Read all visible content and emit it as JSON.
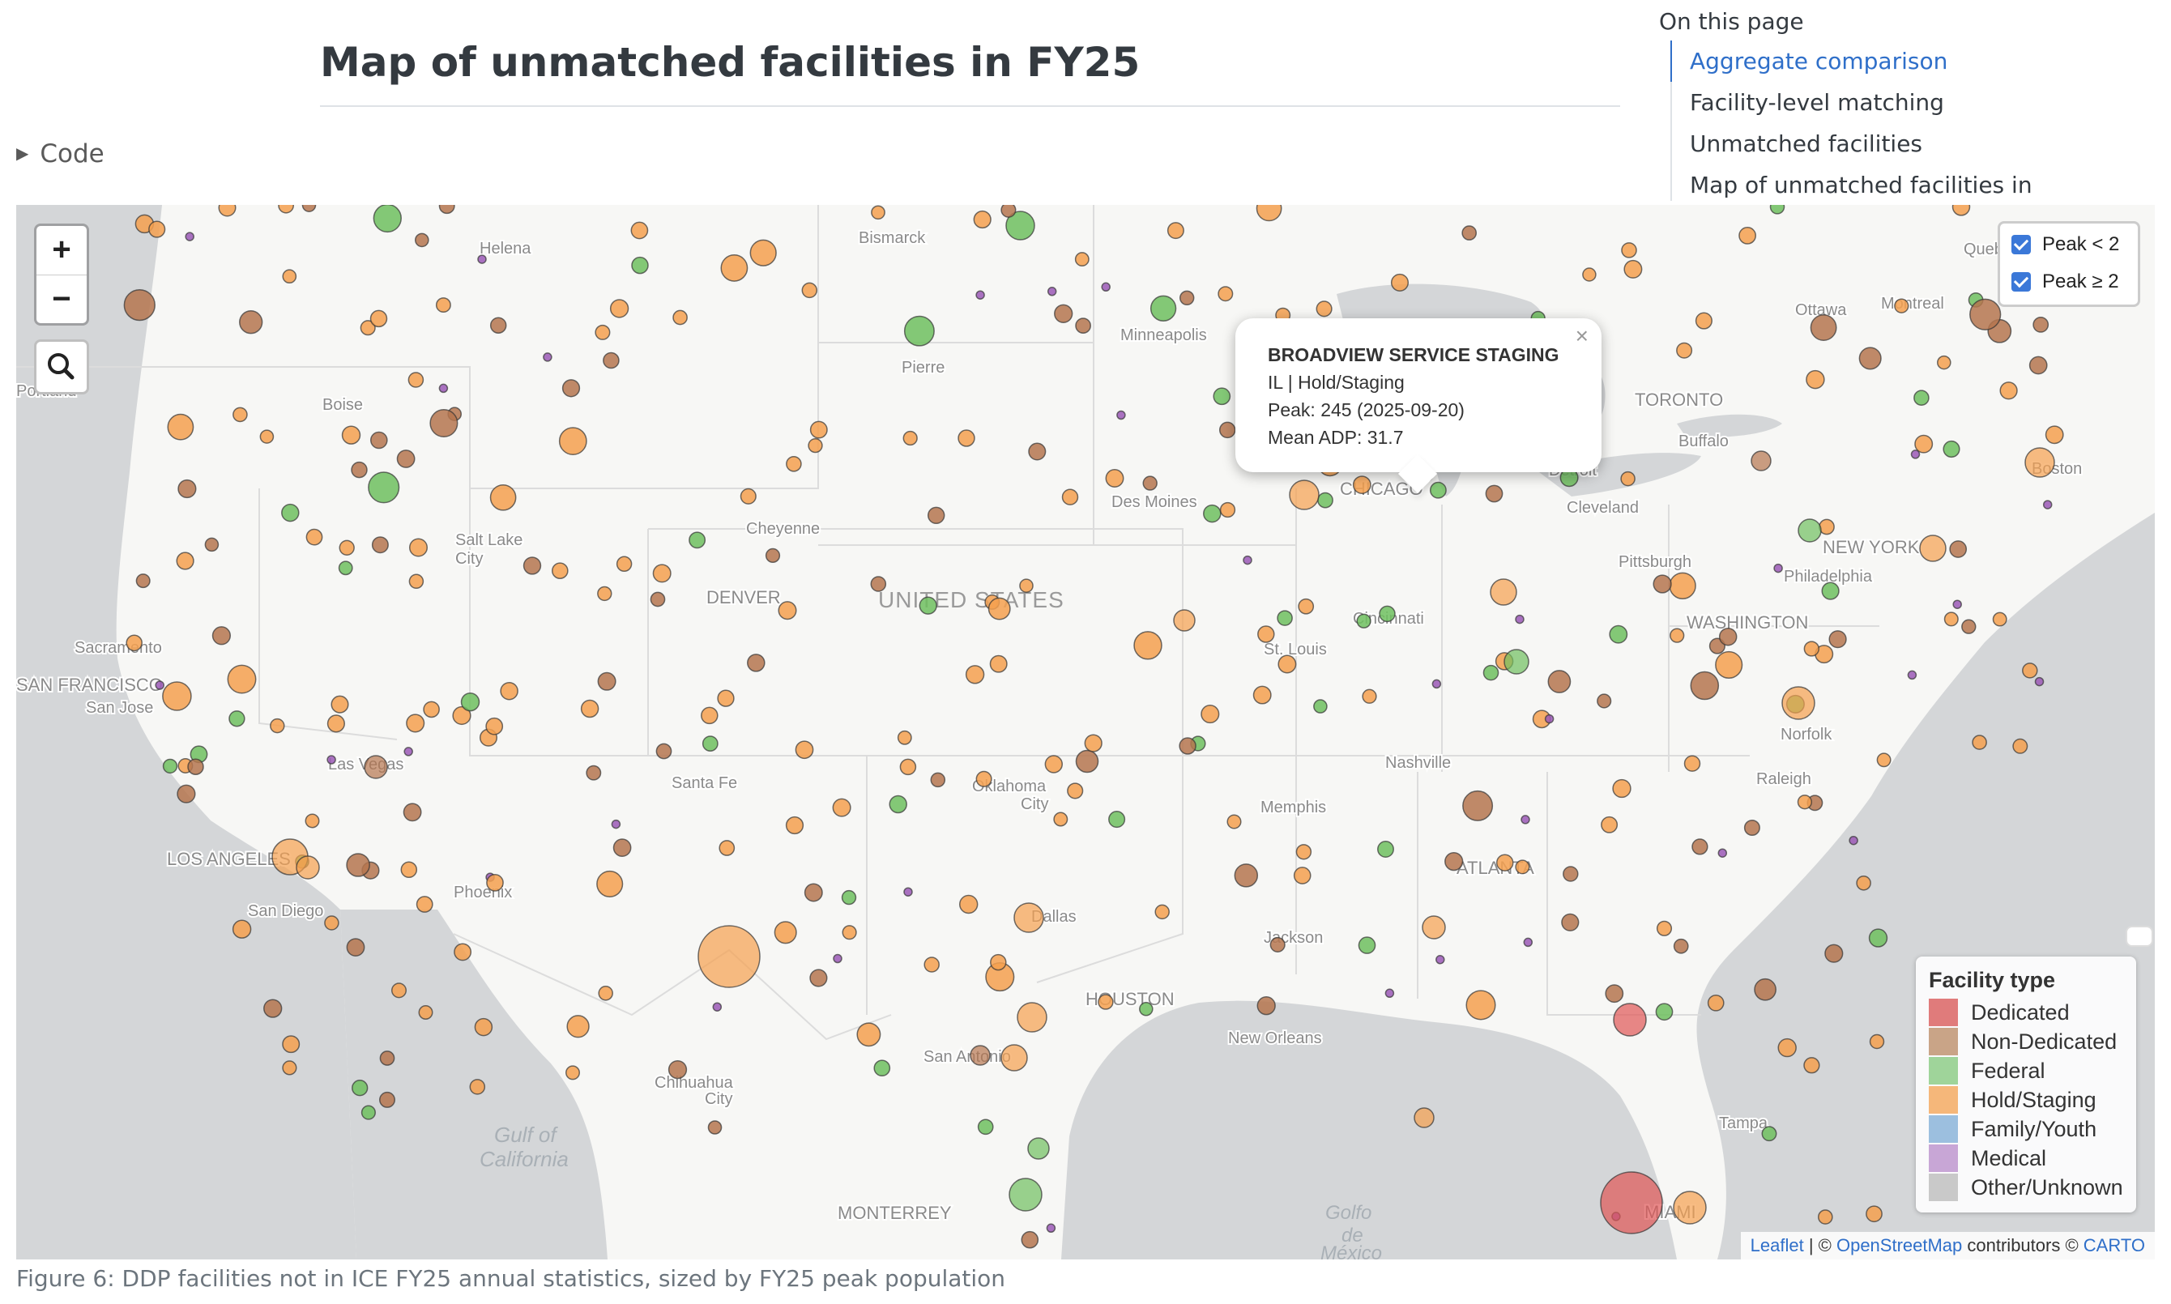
{
  "page": {
    "title": "Map of unmatched facilities in FY25",
    "code_toggle": "Code",
    "caption": "Figure 6: DDP facilities not in ICE FY25 annual statistics, sized by FY25 peak population"
  },
  "toc": {
    "title": "On this page",
    "items": [
      {
        "label": "Aggregate comparison",
        "active": true
      },
      {
        "label": "Facility-level matching",
        "active": false
      },
      {
        "label": "Unmatched facilities",
        "active": false
      },
      {
        "label": "Map of unmatched facilities in",
        "active": false
      }
    ]
  },
  "map": {
    "zoom_in": "+",
    "zoom_out": "−",
    "search_icon": "search-icon",
    "layers": [
      {
        "label": "Peak < 2",
        "checked": true
      },
      {
        "label": "Peak ≥ 2",
        "checked": true
      }
    ],
    "popup": {
      "name": "BROADVIEW SERVICE STAGING",
      "line1": "IL | Hold/Staging",
      "line2": "Peak: 245 (2025-09-20)",
      "line3": "Mean ADP: 31.7",
      "close": "×"
    },
    "legend": {
      "title": "Facility type",
      "items": [
        {
          "label": "Dedicated",
          "color": "#e07b7b"
        },
        {
          "label": "Non-Dedicated",
          "color": "#c9a487"
        },
        {
          "label": "Federal",
          "color": "#9fd49a"
        },
        {
          "label": "Hold/Staging",
          "color": "#f5b77a"
        },
        {
          "label": "Family/Youth",
          "color": "#9cbfdf"
        },
        {
          "label": "Medical",
          "color": "#c8a6d6"
        },
        {
          "label": "Other/Unknown",
          "color": "#c9c9c9"
        }
      ]
    },
    "attribution": {
      "leaflet": "Leaflet",
      "sep": " | © ",
      "osm": "OpenStreetMap",
      "contributors": " contributors © ",
      "carto": "CARTO"
    },
    "labels": {
      "country": "UNITED STATES",
      "gulf_ca_1": "Gulf of",
      "gulf_ca_2": "California",
      "gulf_mx_1": "Golfo",
      "gulf_mx_2": "de",
      "gulf_mx_3": "México",
      "cities": [
        "Helena",
        "Bismarck",
        "Minneapolis",
        "Pierre",
        "Boise",
        "Salt Lake",
        "City",
        "Cheyenne",
        "DENVER",
        "Des Moines",
        "CHICAGO",
        "Detroit",
        "Cleveland",
        "TORONTO",
        "Buffalo",
        "Ottawa",
        "Montreal",
        "Boston",
        "NEW YORK",
        "Philadelphia",
        "Pittsburgh",
        "WASHINGTON",
        "Cincinnati",
        "St. Louis",
        "Sacramento",
        "SAN FRANCISCO",
        "San Jose",
        "Las Vegas",
        "LOS ANGELES",
        "San Diego",
        "Phoenix",
        "Santa Fe",
        "Oklahoma",
        "City",
        "Memphis",
        "Nashville",
        "Raleigh",
        "Norfolk",
        "ATLANTA",
        "Jackson",
        "Dallas",
        "HOUSTON",
        "New Orleans",
        "San Antonio",
        "Chihuahua",
        "City",
        "MONTERREY",
        "Tampa",
        "MIAMI",
        "Portland",
        "Quebec"
      ]
    },
    "colors": {
      "hold": "#f5a04f",
      "nondedicated": "#b5754f",
      "federal": "#6fbf5f",
      "medical": "#9b59b6",
      "dedicated": "#e05555",
      "family": "#5b8fc9"
    }
  }
}
